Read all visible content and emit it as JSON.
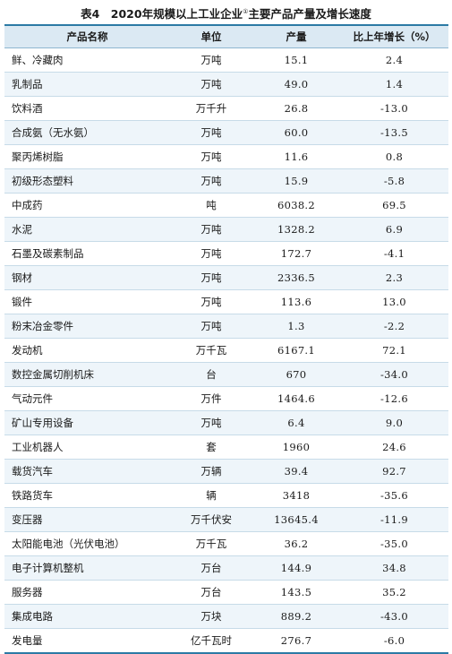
{
  "title": {
    "text": "表4　2020年规模以上工业企业",
    "note_mark": "①",
    "suffix": "主要产品产量及增长速度"
  },
  "columns": [
    "产品名称",
    "单位",
    "产量",
    "比上年增长（%）"
  ],
  "rows": [
    {
      "name": "鲜、冷藏肉",
      "unit": "万吨",
      "output": "15.1",
      "growth": "2.4"
    },
    {
      "name": "乳制品",
      "unit": "万吨",
      "output": "49.0",
      "growth": "1.4"
    },
    {
      "name": "饮料酒",
      "unit": "万千升",
      "output": "26.8",
      "growth": "-13.0"
    },
    {
      "name": "合成氨（无水氨）",
      "unit": "万吨",
      "output": "60.0",
      "growth": "-13.5"
    },
    {
      "name": "聚丙烯树脂",
      "unit": "万吨",
      "output": "11.6",
      "growth": "0.8"
    },
    {
      "name": "初级形态塑料",
      "unit": "万吨",
      "output": "15.9",
      "growth": "-5.8"
    },
    {
      "name": "中成药",
      "unit": "吨",
      "output": "6038.2",
      "growth": "69.5"
    },
    {
      "name": "水泥",
      "unit": "万吨",
      "output": "1328.2",
      "growth": "6.9"
    },
    {
      "name": "石墨及碳素制品",
      "unit": "万吨",
      "output": "172.7",
      "growth": "-4.1"
    },
    {
      "name": "钢材",
      "unit": "万吨",
      "output": "2336.5",
      "growth": "2.3"
    },
    {
      "name": "锻件",
      "unit": "万吨",
      "output": "113.6",
      "growth": "13.0"
    },
    {
      "name": "粉末冶金零件",
      "unit": "万吨",
      "output": "1.3",
      "growth": "-2.2"
    },
    {
      "name": "发动机",
      "unit": "万千瓦",
      "output": "6167.1",
      "growth": "72.1"
    },
    {
      "name": "数控金属切削机床",
      "unit": "台",
      "output": "670",
      "growth": "-34.0"
    },
    {
      "name": "气动元件",
      "unit": "万件",
      "output": "1464.6",
      "growth": "-12.6"
    },
    {
      "name": "矿山专用设备",
      "unit": "万吨",
      "output": "6.4",
      "growth": "9.0"
    },
    {
      "name": "工业机器人",
      "unit": "套",
      "output": "1960",
      "growth": "24.6"
    },
    {
      "name": "载货汽车",
      "unit": "万辆",
      "output": "39.4",
      "growth": "92.7"
    },
    {
      "name": "铁路货车",
      "unit": "辆",
      "output": "3418",
      "growth": "-35.6"
    },
    {
      "name": "变压器",
      "unit": "万千伏安",
      "output": "13645.4",
      "growth": "-11.9"
    },
    {
      "name": "太阳能电池（光伏电池）",
      "unit": "万千瓦",
      "output": "36.2",
      "growth": "-35.0"
    },
    {
      "name": "电子计算机整机",
      "unit": "万台",
      "output": "144.9",
      "growth": "34.8"
    },
    {
      "name": "服务器",
      "unit": "万台",
      "output": "143.5",
      "growth": "35.2"
    },
    {
      "name": "集成电路",
      "unit": "万块",
      "output": "889.2",
      "growth": "-43.0"
    },
    {
      "name": "发电量",
      "unit": "亿千瓦时",
      "output": "276.7",
      "growth": "-6.0"
    }
  ]
}
